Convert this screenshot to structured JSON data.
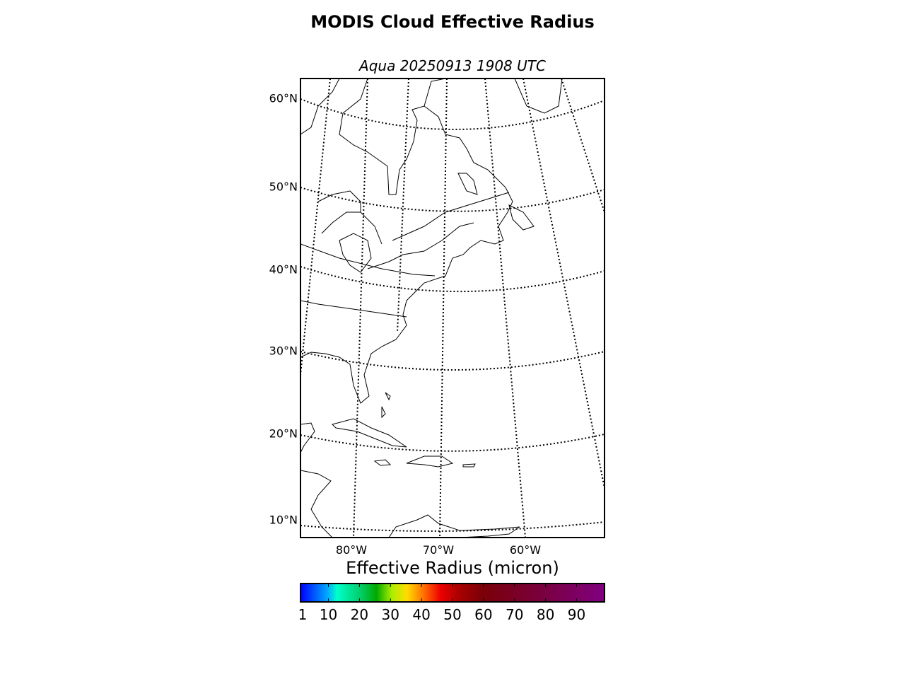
{
  "title": "MODIS Cloud Effective Radius",
  "subtitle": "Aqua 20250913 1908 UTC",
  "map": {
    "lat_labels": [
      "60°N",
      "50°N",
      "40°N",
      "30°N",
      "20°N",
      "10°N"
    ],
    "lon_labels": [
      "80°W",
      "70°W",
      "60°W"
    ]
  },
  "colorbar": {
    "label": "Effective Radius (micron)",
    "lim": [
      1,
      99
    ],
    "ticks": [
      1,
      10,
      20,
      30,
      40,
      50,
      60,
      70,
      80,
      90
    ]
  }
}
